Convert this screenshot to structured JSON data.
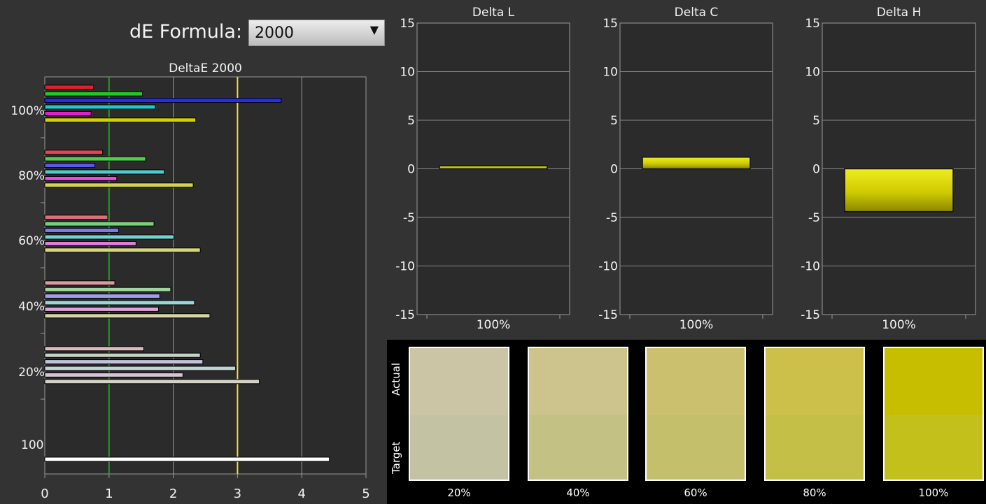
{
  "formula": {
    "label": "dE Formula:",
    "selected": "2000"
  },
  "swatch_panel": {
    "actual_label": "Actual",
    "target_label": "Target",
    "swatches": [
      {
        "label": "20%",
        "actual": "#ccc5a5",
        "target": "#c3c3a4"
      },
      {
        "label": "40%",
        "actual": "#cdc38d",
        "target": "#c4c185"
      },
      {
        "label": "60%",
        "actual": "#cbc06d",
        "target": "#c4bf6a"
      },
      {
        "label": "80%",
        "actual": "#ccbf4a",
        "target": "#c4bf47"
      },
      {
        "label": "100%",
        "actual": "#c8be00",
        "target": "#c3c01b"
      }
    ]
  },
  "chart_data": [
    {
      "type": "bar",
      "orientation": "horizontal",
      "title": "DeltaE 2000",
      "xlim": [
        0,
        5
      ],
      "xticks": [
        "0",
        "1",
        "2",
        "3",
        "4",
        "5"
      ],
      "reference_lines": [
        {
          "x": 1,
          "color": "#2a9a2a"
        },
        {
          "x": 3,
          "color": "#f0e040"
        }
      ],
      "groups": [
        {
          "label": "100%",
          "values": [
            0.76,
            1.52,
            3.68,
            1.72,
            0.72,
            2.35
          ],
          "colors": [
            "#e0202a",
            "#22c82a",
            "#2a2ae8",
            "#20c8c8",
            "#e020d0",
            "#d2d200"
          ]
        },
        {
          "label": "80%",
          "values": [
            0.9,
            1.57,
            0.78,
            1.86,
            1.12,
            2.31
          ],
          "colors": [
            "#e04652",
            "#50cc50",
            "#5858e4",
            "#50cccc",
            "#e050d8",
            "#d4d450"
          ]
        },
        {
          "label": "60%",
          "values": [
            0.98,
            1.7,
            1.15,
            2.01,
            1.42,
            2.42
          ],
          "colors": [
            "#e07078",
            "#78d078",
            "#7c7ce4",
            "#78d0d0",
            "#e07cdc",
            "#d6d67c"
          ]
        },
        {
          "label": "40%",
          "values": [
            1.09,
            1.96,
            1.79,
            2.33,
            1.77,
            2.57
          ],
          "colors": [
            "#dc9aa0",
            "#a0d4a0",
            "#a0a0e0",
            "#a0d4d4",
            "#dca2dc",
            "#d6d6a4"
          ]
        },
        {
          "label": "20%",
          "values": [
            1.54,
            2.42,
            2.46,
            2.97,
            2.15,
            3.34
          ],
          "colors": [
            "#d8bcbe",
            "#c4d4c4",
            "#c2c2dc",
            "#c4d4d4",
            "#d8c4d8",
            "#d4d4c6"
          ]
        },
        {
          "label": "100",
          "values": [
            4.43
          ],
          "colors": [
            "#ffffff"
          ]
        }
      ]
    },
    {
      "type": "bar",
      "title": "Delta L",
      "categories": [
        "100%"
      ],
      "values": [
        0.3
      ],
      "ylim": [
        -15,
        15
      ],
      "yticks": [
        "15",
        "10",
        "5",
        "0",
        "-5",
        "-10",
        "-15"
      ],
      "color": "#d0cc00"
    },
    {
      "type": "bar",
      "title": "Delta C",
      "categories": [
        "100%"
      ],
      "values": [
        1.2
      ],
      "ylim": [
        -15,
        15
      ],
      "yticks": [
        "15",
        "10",
        "5",
        "0",
        "-5",
        "-10",
        "-15"
      ],
      "color": "#d0cc00"
    },
    {
      "type": "bar",
      "title": "Delta H",
      "categories": [
        "100%"
      ],
      "values": [
        -4.4
      ],
      "ylim": [
        -15,
        15
      ],
      "yticks": [
        "15",
        "10",
        "5",
        "0",
        "-5",
        "-10",
        "-15"
      ],
      "color": "#d0cc00"
    }
  ]
}
